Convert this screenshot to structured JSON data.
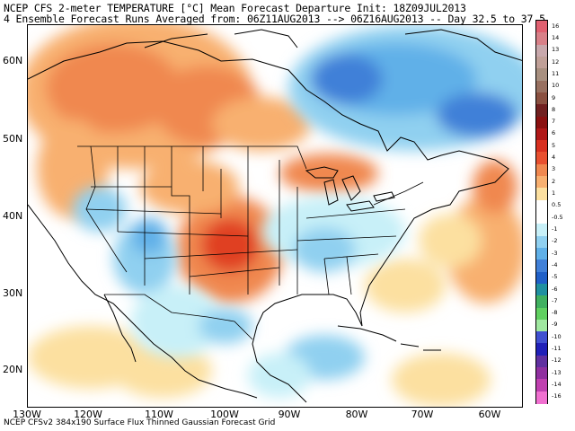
{
  "header": {
    "line1": "NCEP CFS 2-meter TEMPERATURE [°C] Mean Forecast Departure Init: 18Z09JUL2013",
    "line2": "4 Ensemble Forecast Runs Averaged from: 06Z11AUG2013 --> 06Z16AUG2013 -- Day 32.5 to 37.5"
  },
  "footer": "NCEP CFSv2 384x190 Surface Flux Thinned Gaussian Forecast Grid",
  "axes": {
    "lat_labels": [
      "60N",
      "50N",
      "40N",
      "30N",
      "20N"
    ],
    "lon_labels": [
      "130W",
      "120W",
      "110W",
      "100W",
      "90W",
      "80W",
      "70W",
      "60W"
    ]
  },
  "colorbar": {
    "labels": [
      "16",
      "14",
      "13",
      "12",
      "11",
      "10",
      "9",
      "8",
      "7",
      "6",
      "5",
      "4",
      "3",
      "2",
      "1",
      "0.5",
      "-0.5",
      "-1",
      "-2",
      "-3",
      "-4",
      "-5",
      "-6",
      "-7",
      "-8",
      "-9",
      "-10",
      "-11",
      "-12",
      "-13",
      "-14",
      "-16"
    ],
    "colors": [
      "#e06070",
      "#d88088",
      "#c8a8ac",
      "#c0a098",
      "#a89080",
      "#987060",
      "#8a5040",
      "#702020",
      "#8a1010",
      "#b01818",
      "#d83020",
      "#e85030",
      "#f08850",
      "#f8b070",
      "#fce0a0",
      "#ffffff",
      "#ffffff",
      "#c8f0f8",
      "#90d0f0",
      "#60b0e8",
      "#4080d8",
      "#2060c8",
      "#2090a0",
      "#40b060",
      "#60d060",
      "#a0e8a0",
      "#4050d0",
      "#2020b8",
      "#6030a0",
      "#9030a0",
      "#c040b0",
      "#f070d0"
    ]
  },
  "colors": {
    "warm_strong": "#e04020",
    "warm": "#f08850",
    "warm_light": "#f8b070",
    "warm_faint": "#fce0a0",
    "cool_faint": "#c8f0f8",
    "cool_light": "#90d0f0",
    "cool": "#60b0e8",
    "cool_strong": "#4080d8"
  }
}
